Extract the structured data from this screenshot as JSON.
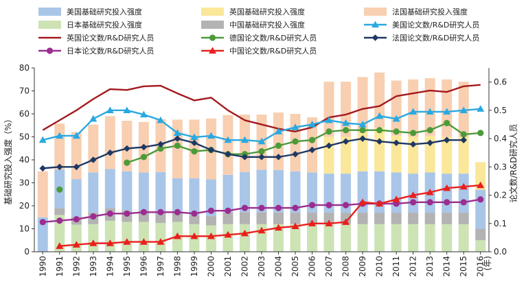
{
  "chart_data": {
    "type": "bar",
    "x_label_suffix": "(年)",
    "ylabel_left": "基础研究投入强度（%）",
    "ylabel_right": "论文数/R&D研究人员",
    "ylim_left": [
      0,
      80
    ],
    "ylim_right": [
      0,
      0.65
    ],
    "yticks_left": [
      "0",
      "10",
      "20",
      "30",
      "40",
      "50",
      "60",
      "70",
      "80"
    ],
    "yticks_right": [
      "0.0",
      "0.1",
      "0.2",
      "0.3",
      "0.4",
      "0.5",
      "0.6"
    ],
    "categories": [
      "1990",
      "1991",
      "1992",
      "1993",
      "1994",
      "1995",
      "1996",
      "1997",
      "1998",
      "1999",
      "2000",
      "2001",
      "2002",
      "2003",
      "2004",
      "2005",
      "2006",
      "2007",
      "2008",
      "2009",
      "2010",
      "2011",
      "2012",
      "2013",
      "2014",
      "2015",
      "2016"
    ],
    "bar_stack_order": [
      "jp_basic",
      "cn_basic",
      "us_basic",
      "uk_basic",
      "fr_basic"
    ],
    "bar_series": [
      {
        "key": "us_basic",
        "name": "美国基础研究投入强度",
        "color": "#a9c6e8",
        "values": [
          15,
          16.8,
          16.5,
          17.5,
          17,
          17,
          16.5,
          17.2,
          15,
          16,
          16,
          16.5,
          17.5,
          18.5,
          18.5,
          18,
          17.5,
          17,
          17,
          18,
          18,
          17.5,
          17,
          17.5,
          17,
          17,
          17
        ]
      },
      {
        "key": "uk_basic",
        "name": "英国基础研究投入强度",
        "color": "#fae79a",
        "values": [
          null,
          null,
          null,
          null,
          null,
          null,
          null,
          null,
          null,
          null,
          null,
          null,
          null,
          null,
          null,
          null,
          null,
          16,
          16,
          17,
          19,
          16,
          16,
          16,
          16,
          16,
          12
        ]
      },
      {
        "key": "fr_basic",
        "name": "法国基础研究投入强度",
        "color": "#f8cfb1",
        "values": [
          20,
          20,
          20.5,
          20.8,
          23,
          22,
          22,
          23,
          25.5,
          25.5,
          26.5,
          26,
          25,
          24,
          25,
          25,
          24,
          24,
          24,
          24,
          24,
          24,
          25,
          25,
          25,
          24,
          null
        ]
      },
      {
        "key": "jp_basic",
        "name": "日本基础研究投入强度",
        "color": "#cde3b4",
        "values": [
          null,
          16,
          11.8,
          12,
          13.5,
          13,
          13,
          12.5,
          13,
          12,
          11.5,
          12,
          12,
          12,
          12,
          12,
          12,
          12,
          12,
          12,
          12,
          12,
          12,
          12,
          12,
          12,
          5
        ]
      },
      {
        "key": "cn_basic",
        "name": "中国基础研究投入强度",
        "color": "#b3b3b3",
        "values": [
          null,
          3,
          3.3,
          5,
          5.5,
          5,
          5,
          5,
          4,
          4,
          4,
          5,
          5.2,
          5.2,
          5.1,
          5,
          5,
          5,
          5,
          5,
          5,
          5,
          5,
          5,
          5,
          5,
          5
        ]
      }
    ],
    "line_series": [
      {
        "key": "uk_papers",
        "name": "英国论文数/R&D研究人员",
        "color": "#a3191d",
        "marker": "none",
        "values": [
          0.43,
          0.465,
          0.5,
          0.54,
          0.575,
          0.572,
          0.585,
          0.587,
          0.56,
          0.535,
          0.545,
          0.5,
          0.465,
          0.45,
          0.435,
          0.425,
          0.44,
          0.475,
          0.485,
          0.505,
          0.515,
          0.55,
          0.56,
          0.57,
          0.565,
          0.585,
          0.59
        ]
      },
      {
        "key": "de_papers",
        "name": "德国论文数/R&D研究人员",
        "color": "#4c9a3a",
        "marker": "circle",
        "values": [
          null,
          0.22,
          null,
          null,
          null,
          0.315,
          0.335,
          0.365,
          0.375,
          0.355,
          0.36,
          0.345,
          0.345,
          0.355,
          0.375,
          0.39,
          0.395,
          0.425,
          0.43,
          0.43,
          0.43,
          0.425,
          0.42,
          0.43,
          0.455,
          0.415,
          0.42
        ]
      },
      {
        "key": "fr_papers",
        "name": "法国论文数/R&D研究人员",
        "color": "#1f3864",
        "marker": "diamond",
        "values": [
          0.295,
          0.3,
          0.3,
          0.325,
          0.35,
          0.365,
          0.37,
          0.38,
          0.4,
          0.385,
          0.36,
          0.345,
          0.335,
          0.335,
          0.335,
          0.345,
          0.36,
          0.375,
          0.39,
          0.4,
          0.39,
          0.385,
          0.38,
          0.385,
          0.395,
          0.395,
          null
        ]
      },
      {
        "key": "us_papers",
        "name": "美国论文数/R&D研究人员",
        "color": "#29a9e1",
        "marker": "triangle",
        "values": [
          0.395,
          0.41,
          0.41,
          0.47,
          0.5,
          0.5,
          0.485,
          0.465,
          0.42,
          0.405,
          0.41,
          0.395,
          0.395,
          0.39,
          0.425,
          0.44,
          0.45,
          0.465,
          0.455,
          0.45,
          0.48,
          0.47,
          0.495,
          0.495,
          0.495,
          0.5,
          0.505
        ]
      },
      {
        "key": "jp_papers",
        "name": "日本论文数/R&D研究人员",
        "color": "#9b2d8f",
        "marker": "circle",
        "values": [
          0.105,
          0.11,
          0.115,
          0.125,
          0.135,
          0.135,
          0.14,
          0.14,
          0.14,
          0.135,
          0.145,
          0.145,
          0.155,
          0.155,
          0.155,
          0.155,
          0.165,
          0.165,
          0.165,
          0.17,
          0.17,
          0.17,
          0.175,
          0.175,
          0.175,
          0.175,
          0.185
        ]
      },
      {
        "key": "cn_papers",
        "name": "中国论文数/R&D研究人员",
        "color": "#e8201d",
        "marker": "triangle",
        "values": [
          null,
          0.02,
          0.025,
          0.03,
          0.03,
          0.035,
          0.035,
          0.035,
          0.055,
          0.055,
          0.055,
          0.06,
          0.065,
          0.075,
          0.085,
          0.09,
          0.1,
          0.1,
          0.105,
          0.175,
          0.17,
          0.185,
          0.2,
          0.21,
          0.225,
          0.23,
          0.235
        ]
      }
    ],
    "legend_order": [
      [
        "us_basic",
        "uk_basic",
        "fr_basic"
      ],
      [
        "jp_basic",
        "cn_basic",
        "us_papers"
      ],
      [
        "uk_papers",
        "de_papers",
        "fr_papers"
      ],
      [
        "jp_papers",
        "cn_papers"
      ]
    ],
    "legend_placement": "top",
    "grid": false
  }
}
